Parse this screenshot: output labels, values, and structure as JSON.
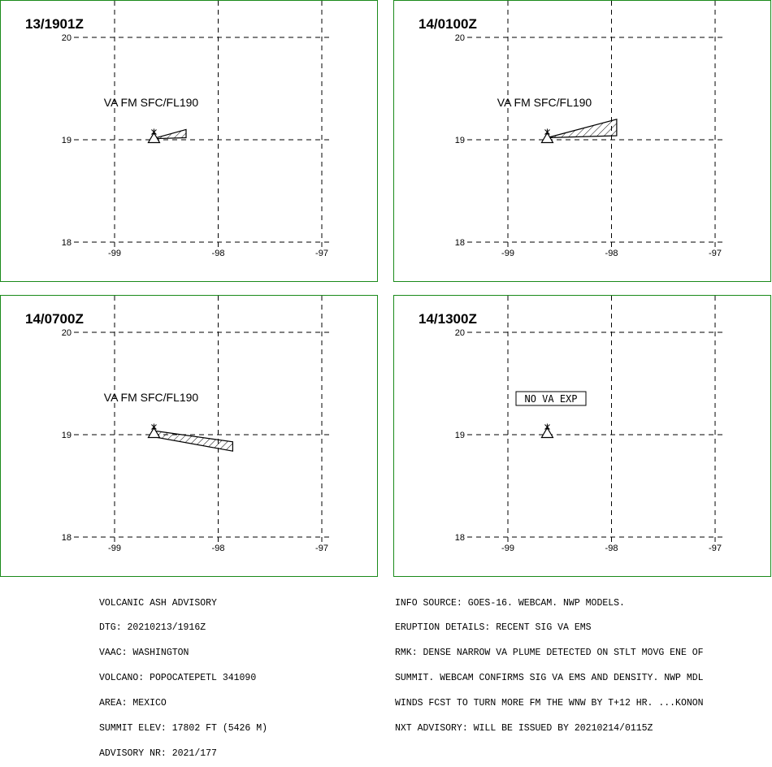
{
  "panels": [
    {
      "time": "13/1901Z",
      "lat_ticks": [
        "20",
        "19",
        "18"
      ],
      "lon_ticks": [
        "-99",
        "-98",
        "-97"
      ],
      "plume_label": "VA FM SFC/FL190",
      "no_va_label": "",
      "plume": [
        [
          -98.63,
          19.01
        ],
        [
          -98.31,
          19.1
        ],
        [
          -98.31,
          19.02
        ],
        [
          -98.63,
          19.01
        ]
      ]
    },
    {
      "time": "14/0100Z",
      "lat_ticks": [
        "20",
        "19",
        "18"
      ],
      "lon_ticks": [
        "-99",
        "-98",
        "-97"
      ],
      "plume_label": "VA FM SFC/FL190",
      "no_va_label": "",
      "plume": [
        [
          -98.62,
          19.02
        ],
        [
          -97.95,
          19.2
        ],
        [
          -97.95,
          19.04
        ],
        [
          -98.62,
          19.02
        ]
      ]
    },
    {
      "time": "14/0700Z",
      "lat_ticks": [
        "20",
        "19",
        "18"
      ],
      "lon_ticks": [
        "-99",
        "-98",
        "-97"
      ],
      "plume_label": "VA FM SFC/FL190",
      "no_va_label": "",
      "plume": [
        [
          -98.63,
          19.04
        ],
        [
          -97.86,
          18.93
        ],
        [
          -97.86,
          18.84
        ],
        [
          -98.63,
          18.98
        ],
        [
          -98.63,
          19.04
        ]
      ]
    },
    {
      "time": "14/1300Z",
      "lat_ticks": [
        "20",
        "19",
        "18"
      ],
      "lon_ticks": [
        "-99",
        "-98",
        "-97"
      ],
      "plume_label": "",
      "no_va_label": "NO VA EXP",
      "plume": []
    }
  ],
  "map": {
    "lon_min": -99.0,
    "lon_max": -97.0,
    "lat_min": 18.0,
    "lat_max": 20.0,
    "volcano": {
      "lon": -98.62,
      "lat": 19.02,
      "icon": "volcano-triangle-icon"
    }
  },
  "advisory_left": [
    "VOLCANIC ASH ADVISORY",
    "DTG: 20210213/1916Z",
    "VAAC: WASHINGTON",
    "VOLCANO: POPOCATEPETL 341090",
    "AREA: MEXICO",
    "SUMMIT ELEV: 17802 FT (5426 M)",
    "ADVISORY NR: 2021/177"
  ],
  "advisory_right": [
    "INFO SOURCE: GOES-16. WEBCAM. NWP MODELS.",
    "ERUPTION DETAILS: RECENT SIG VA EMS",
    "RMK: DENSE NARROW VA PLUME DETECTED ON STLT MOVG ENE OF",
    "SUMMIT. WEBCAM CONFIRMS SIG VA EMS AND DENSITY. NWP MDL",
    "WINDS FCST TO TURN MORE FM THE WNW BY T+12 HR. ...KONON",
    "NXT ADVISORY: WILL BE ISSUED BY 20210214/0115Z"
  ],
  "colors": {
    "frame": "#1a8a1a",
    "ink": "#000000"
  }
}
